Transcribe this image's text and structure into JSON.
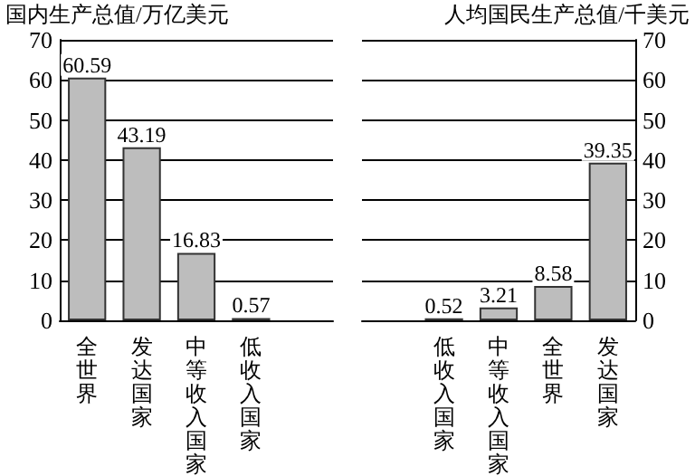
{
  "chart_data": [
    {
      "type": "bar",
      "ylabel": "国内生产总值/万亿美元",
      "categories": [
        "全世界",
        "发达国家",
        "中等收入国家",
        "低收入国家",
        null
      ],
      "series": [
        {
          "color": "#bdbdbd",
          "values": [
            60.59,
            43.19,
            16.83,
            0.57,
            null
          ]
        }
      ],
      "ylim": [
        0,
        70
      ],
      "yticks": [
        0,
        10,
        20,
        30,
        40,
        50,
        60,
        70
      ],
      "grid": "y",
      "data_labels": true
    },
    {
      "type": "bar",
      "y2label": "人均国民生产总值/千美元",
      "categories": [
        null,
        "低收入国家",
        "中等收入国家",
        "全世界",
        "发达国家"
      ],
      "series": [
        {
          "color": "#bdbdbd",
          "axis": "y2",
          "values": [
            null,
            0.52,
            3.21,
            8.58,
            39.35
          ]
        }
      ],
      "y2lim": [
        0,
        70
      ],
      "y2ticks": [
        0,
        10,
        20,
        30,
        40,
        50,
        60,
        70
      ],
      "grid": "y",
      "data_labels": true
    }
  ]
}
